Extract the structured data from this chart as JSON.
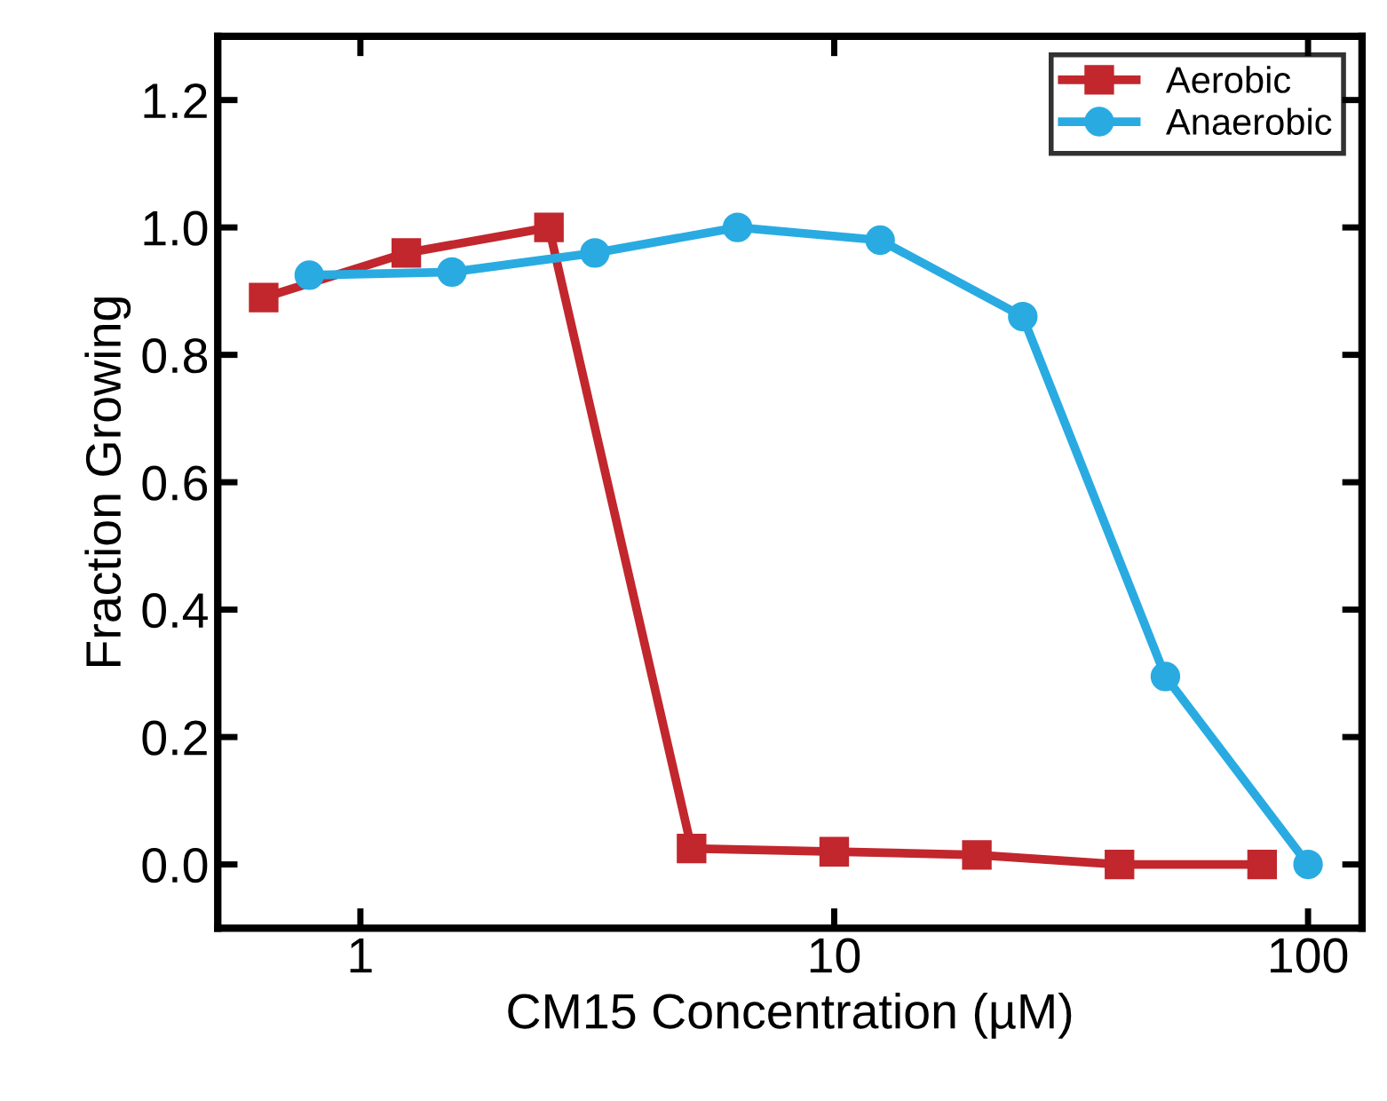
{
  "chart_data": {
    "type": "line",
    "xlabel": "CM15 Concentration (µM)",
    "ylabel": "Fraction Growing",
    "log": "x",
    "xlim": [
      0.5,
      130
    ],
    "xticks": [
      1,
      10,
      100
    ],
    "ylim": [
      -0.1,
      1.3
    ],
    "yticks": [
      {
        "value": 0,
        "label": "0.0"
      },
      {
        "value": 0.2,
        "label": "0.2"
      },
      {
        "value": 0.4,
        "label": "0.4"
      },
      {
        "value": 0.6,
        "label": "0.6"
      },
      {
        "value": 0.8,
        "label": "0.8"
      },
      {
        "value": 1,
        "label": "1.0"
      },
      {
        "value": 1.2,
        "label": "1.2"
      }
    ],
    "legend": "top right",
    "grid": false,
    "line_style": "solid",
    "series": [
      {
        "name": "Aerobic",
        "color": "#c1272d",
        "marker": "square",
        "x": [
          0.625,
          1.25,
          2.5,
          5,
          10,
          20,
          40,
          80
        ],
        "values": [
          0.89,
          0.96,
          1.0,
          0.025,
          0.02,
          0.015,
          0.0,
          0.0
        ]
      },
      {
        "name": "Anaerobic",
        "color": "#29abe2",
        "marker": "circle",
        "x": [
          0.78,
          1.56,
          3.125,
          6.25,
          12.5,
          25,
          50,
          100
        ],
        "values": [
          0.925,
          0.93,
          0.96,
          1.0,
          0.98,
          0.86,
          0.295,
          0.0
        ]
      }
    ]
  }
}
